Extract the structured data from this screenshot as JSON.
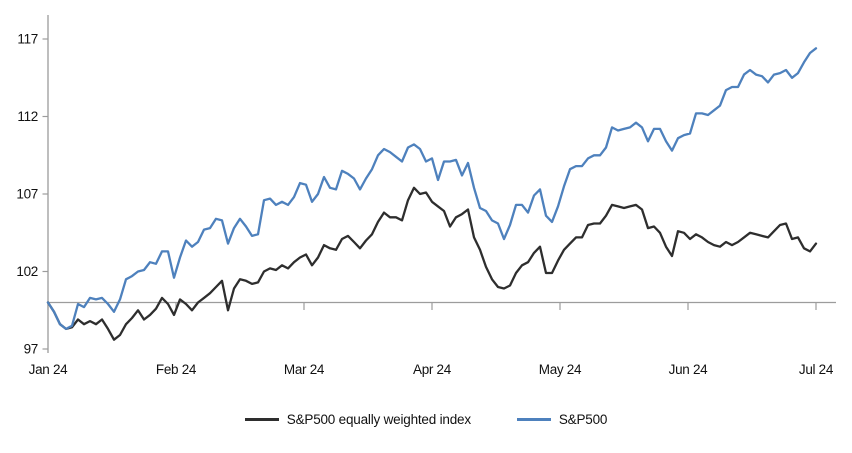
{
  "chart_data": {
    "type": "line",
    "title": "",
    "x_axis": {
      "tick_labels": [
        "Jan 24",
        "Feb 24",
        "Mar 24",
        "Apr 24",
        "May 24",
        "Jun 24",
        "Jul 24"
      ]
    },
    "y_axis": {
      "ticks": [
        97,
        102,
        107,
        112,
        117
      ],
      "min": 97,
      "max": 117
    },
    "baseline_value": 100,
    "grid": "off",
    "legend_position": "bottom-center",
    "series": [
      {
        "key": "sp500-equally-weighted",
        "name": "S&P500 equally weighted index",
        "color": "#2e2e2e",
        "values": [
          100.0,
          99.4,
          98.6,
          98.3,
          98.4,
          98.9,
          98.6,
          98.8,
          98.6,
          98.9,
          98.3,
          97.6,
          97.9,
          98.6,
          99.0,
          99.5,
          98.9,
          99.2,
          99.6,
          100.3,
          99.9,
          99.2,
          100.2,
          99.9,
          99.5,
          100.0,
          100.3,
          100.6,
          101.0,
          101.4,
          99.5,
          100.9,
          101.5,
          101.4,
          101.2,
          101.3,
          102.0,
          102.2,
          102.1,
          102.4,
          102.2,
          102.6,
          102.9,
          103.1,
          102.4,
          102.9,
          103.7,
          103.5,
          103.4,
          104.1,
          104.3,
          103.9,
          103.5,
          104.0,
          104.4,
          105.2,
          105.8,
          105.5,
          105.5,
          105.3,
          106.6,
          107.4,
          107.0,
          107.1,
          106.5,
          106.2,
          105.9,
          104.9,
          105.5,
          105.7,
          106.0,
          104.2,
          103.4,
          102.3,
          101.5,
          101.0,
          100.9,
          101.1,
          101.9,
          102.4,
          102.6,
          103.2,
          103.6,
          101.9,
          101.9,
          102.7,
          103.4,
          103.8,
          104.2,
          104.2,
          105.0,
          105.1,
          105.1,
          105.6,
          106.3,
          106.2,
          106.1,
          106.2,
          106.3,
          106.0,
          104.8,
          104.9,
          104.5,
          103.6,
          103.0,
          104.6,
          104.5,
          104.1,
          104.4,
          104.2,
          103.9,
          103.7,
          103.6,
          103.9,
          103.7,
          103.9,
          104.2,
          104.5,
          104.4,
          104.3,
          104.2,
          104.6,
          105.0,
          105.1,
          104.1,
          104.2,
          103.5,
          103.3,
          103.8
        ]
      },
      {
        "key": "sp500",
        "name": "S&P500",
        "color": "#4e81bd",
        "values": [
          100.0,
          99.4,
          98.6,
          98.3,
          98.5,
          99.9,
          99.7,
          100.3,
          100.2,
          100.3,
          99.9,
          99.4,
          100.2,
          101.5,
          101.7,
          102.0,
          102.1,
          102.6,
          102.5,
          103.3,
          103.3,
          101.6,
          102.9,
          104.0,
          103.6,
          103.9,
          104.7,
          104.8,
          105.4,
          105.3,
          103.8,
          104.8,
          105.4,
          104.9,
          104.3,
          104.4,
          106.6,
          106.7,
          106.3,
          106.5,
          106.3,
          106.8,
          107.7,
          107.6,
          106.5,
          107.0,
          108.1,
          107.4,
          107.3,
          108.5,
          108.3,
          108.0,
          107.3,
          108.0,
          108.6,
          109.5,
          109.9,
          109.7,
          109.4,
          109.1,
          110.0,
          110.2,
          109.9,
          109.1,
          109.3,
          107.9,
          109.1,
          109.1,
          109.2,
          108.2,
          109.0,
          107.4,
          106.1,
          105.9,
          105.3,
          105.1,
          104.1,
          105.0,
          106.3,
          106.3,
          105.8,
          106.9,
          107.3,
          105.6,
          105.2,
          106.2,
          107.5,
          108.6,
          108.8,
          108.8,
          109.3,
          109.5,
          109.5,
          110.0,
          111.3,
          111.1,
          111.2,
          111.3,
          111.6,
          111.3,
          110.4,
          111.2,
          111.2,
          110.4,
          109.8,
          110.6,
          110.8,
          110.9,
          112.2,
          112.2,
          112.1,
          112.4,
          112.7,
          113.7,
          113.9,
          113.9,
          114.7,
          115.0,
          114.7,
          114.6,
          114.2,
          114.7,
          114.8,
          115.0,
          114.5,
          114.8,
          115.5,
          116.1,
          116.4
        ]
      }
    ]
  },
  "colors": {
    "axis": "#9c9c9c",
    "background": "#ffffff",
    "text": "#111111"
  }
}
